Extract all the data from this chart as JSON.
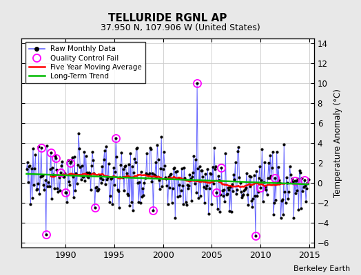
{
  "title": "TELLURIDE RGNL AP",
  "subtitle": "37.950 N, 107.906 W (United States)",
  "ylabel": "Temperature Anomaly (°C)",
  "attribution": "Berkeley Earth",
  "xlim": [
    1985.5,
    2015.5
  ],
  "ylim": [
    -6.5,
    14.5
  ],
  "yticks": [
    -6,
    -4,
    -2,
    0,
    2,
    4,
    6,
    8,
    10,
    12,
    14
  ],
  "xticks": [
    1990,
    1995,
    2000,
    2005,
    2010,
    2015
  ],
  "raw_color": "#6666ff",
  "ma_color": "#ff0000",
  "trend_color": "#00bb00",
  "qc_color": "#ff00ff",
  "background_color": "#e8e8e8",
  "plot_bg_color": "#ffffff",
  "grid_color": "#cccccc"
}
